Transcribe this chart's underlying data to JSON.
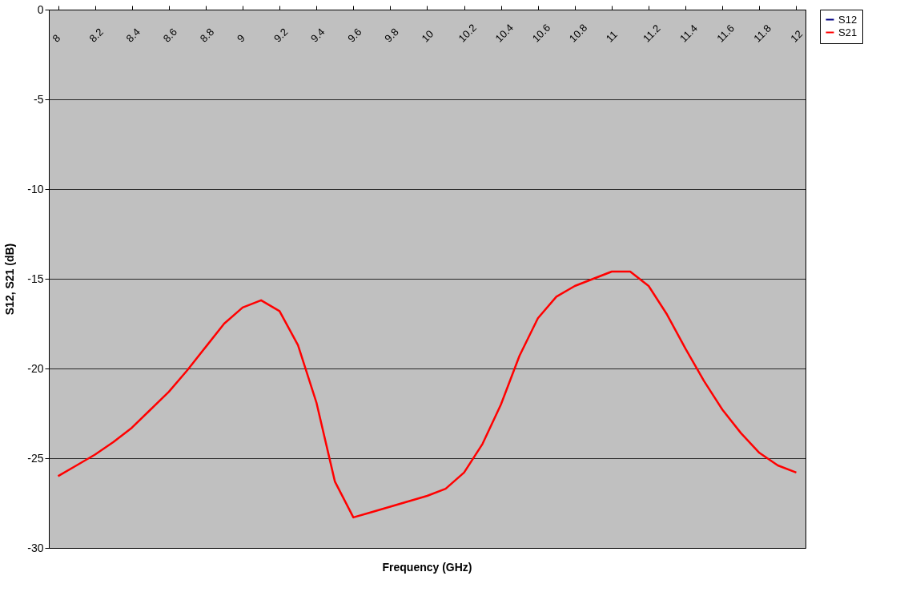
{
  "chart_data": {
    "type": "line",
    "xlabel": "Frequency (GHz)",
    "ylabel": "S12, S21 (dB)",
    "x": [
      8.0,
      8.1,
      8.2,
      8.3,
      8.4,
      8.5,
      8.6,
      8.7,
      8.8,
      8.9,
      9.0,
      9.1,
      9.2,
      9.3,
      9.4,
      9.5,
      9.6,
      9.7,
      9.8,
      9.9,
      10.0,
      10.1,
      10.2,
      10.3,
      10.4,
      10.5,
      10.6,
      10.7,
      10.8,
      10.9,
      11.0,
      11.1,
      11.2,
      11.3,
      11.4,
      11.5,
      11.6,
      11.7,
      11.8,
      11.9,
      12.0
    ],
    "series": [
      {
        "name": "S12",
        "color": "#000080",
        "values": [
          null,
          null,
          null,
          null,
          null,
          null,
          null,
          null,
          null,
          null,
          null,
          null,
          null,
          null,
          null,
          null,
          null,
          null,
          null,
          null,
          null,
          null,
          null,
          null,
          null,
          null,
          null,
          null,
          null,
          null,
          null,
          null,
          null,
          null,
          null,
          null,
          null,
          null,
          null,
          null,
          null
        ]
      },
      {
        "name": "S21",
        "color": "#ff0000",
        "values": [
          -26.0,
          -25.4,
          -24.8,
          -24.1,
          -23.3,
          -22.3,
          -21.3,
          -20.1,
          -18.8,
          -17.5,
          -16.6,
          -16.2,
          -16.8,
          -18.7,
          -21.9,
          -26.3,
          -28.3,
          -28.0,
          -27.7,
          -27.4,
          -27.1,
          -26.7,
          -25.8,
          -24.2,
          -22.0,
          -19.3,
          -17.2,
          -16.0,
          -15.4,
          -15.0,
          -14.6,
          -14.6,
          -15.4,
          -17.0,
          -18.9,
          -20.7,
          -22.3,
          -23.6,
          -24.7,
          -25.4,
          -25.8
        ]
      }
    ],
    "xlim": [
      7.95,
      12.05
    ],
    "xticks": [
      8,
      8.2,
      8.4,
      8.6,
      8.8,
      9,
      9.2,
      9.4,
      9.6,
      9.8,
      10,
      10.2,
      10.4,
      10.6,
      10.8,
      11,
      11.2,
      11.4,
      11.6,
      11.8,
      12
    ],
    "ylim": [
      -30,
      0
    ],
    "yticks": [
      -30,
      -25,
      -20,
      -15,
      -10,
      -5,
      0
    ],
    "grid": "y",
    "legend": "right",
    "line_style": "solid",
    "marker": "none"
  }
}
